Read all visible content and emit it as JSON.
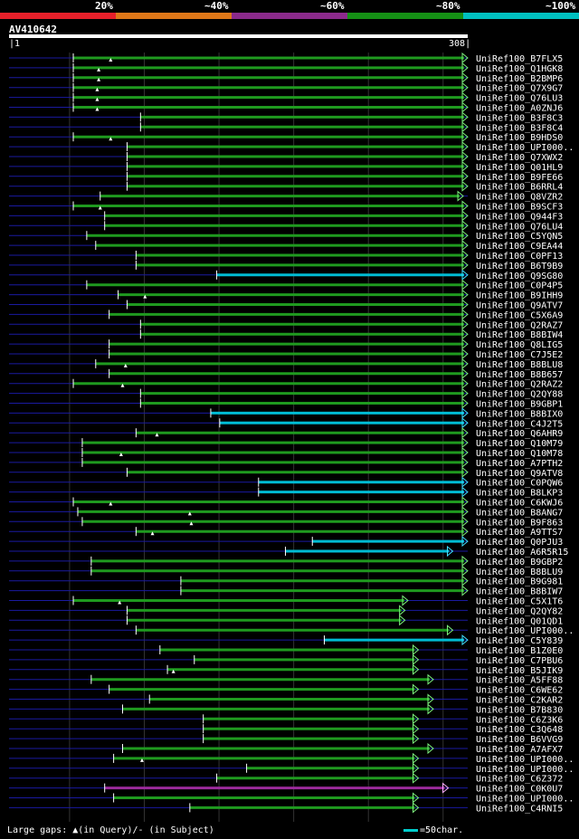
{
  "chart_data": {
    "type": "alignment",
    "query_id": "AV410642",
    "query_range": [
      1,
      308
    ],
    "legend": {
      "labels": [
        "20%",
        "~40%",
        "~60%",
        "~80%",
        "~100%"
      ],
      "colors": [
        "#e8202a",
        "#e07818",
        "#8b2a8b",
        "#159015",
        "#00c0c0"
      ]
    },
    "colors": {
      "green": "#1f9a1f",
      "cyan": "#00bcd4",
      "magenta": "#9b2a9b",
      "arrow_green": "#7cf07c",
      "arrow_cyan": "#40e0ff",
      "dash": "#1a1aa0",
      "grid": "#333333"
    },
    "hits": [
      {
        "id": "UniRef100_B7FLX5",
        "start": 44,
        "end": 308,
        "color": "green",
        "ins": [
          69
        ]
      },
      {
        "id": "UniRef100_Q1HGK8",
        "start": 44,
        "end": 308,
        "color": "green",
        "ins": [
          61
        ]
      },
      {
        "id": "UniRef100_B2BMP6",
        "start": 44,
        "end": 308,
        "color": "green",
        "ins": [
          61
        ]
      },
      {
        "id": "UniRef100_Q7X9G7",
        "start": 44,
        "end": 308,
        "color": "green",
        "ins": [
          60
        ]
      },
      {
        "id": "UniRef100_Q76LU3",
        "start": 44,
        "end": 308,
        "color": "green",
        "ins": [
          60
        ]
      },
      {
        "id": "UniRef100_A0ZNJ6",
        "start": 44,
        "end": 308,
        "color": "green",
        "ins": [
          60
        ]
      },
      {
        "id": "UniRef100_B3F8C3",
        "start": 89,
        "end": 308,
        "color": "green",
        "ins": []
      },
      {
        "id": "UniRef100_B3F8C4",
        "start": 89,
        "end": 308,
        "color": "green",
        "ins": []
      },
      {
        "id": "UniRef100_B9HDS0",
        "start": 44,
        "end": 308,
        "color": "green",
        "ins": [
          69
        ]
      },
      {
        "id": "UniRef100_UPI000..",
        "start": 80,
        "end": 308,
        "color": "green",
        "ins": []
      },
      {
        "id": "UniRef100_Q7XWX2",
        "start": 80,
        "end": 308,
        "color": "green",
        "ins": []
      },
      {
        "id": "UniRef100_Q01HL9",
        "start": 80,
        "end": 308,
        "color": "green",
        "ins": []
      },
      {
        "id": "UniRef100_B9FE66",
        "start": 80,
        "end": 308,
        "color": "green",
        "ins": []
      },
      {
        "id": "UniRef100_B6RRL4",
        "start": 80,
        "end": 308,
        "color": "green",
        "ins": []
      },
      {
        "id": "UniRef100_Q8VZR2",
        "start": 62,
        "end": 305,
        "color": "green",
        "ins": []
      },
      {
        "id": "UniRef100_B9SCF3",
        "start": 44,
        "end": 308,
        "color": "green",
        "ins": [
          62
        ]
      },
      {
        "id": "UniRef100_Q944F3",
        "start": 65,
        "end": 308,
        "color": "green",
        "ins": []
      },
      {
        "id": "UniRef100_Q76LU4",
        "start": 65,
        "end": 308,
        "color": "green",
        "ins": []
      },
      {
        "id": "UniRef100_C5YQN5",
        "start": 53,
        "end": 308,
        "color": "green",
        "ins": []
      },
      {
        "id": "UniRef100_C9EA44",
        "start": 59,
        "end": 308,
        "color": "green",
        "ins": []
      },
      {
        "id": "UniRef100_C0PF13",
        "start": 86,
        "end": 308,
        "color": "green",
        "ins": []
      },
      {
        "id": "UniRef100_B6T9B9",
        "start": 86,
        "end": 308,
        "color": "green",
        "ins": []
      },
      {
        "id": "UniRef100_Q9SG80",
        "start": 140,
        "end": 308,
        "color": "cyan",
        "ins": []
      },
      {
        "id": "UniRef100_C0P4P5",
        "start": 53,
        "end": 308,
        "color": "green",
        "ins": []
      },
      {
        "id": "UniRef100_B9IHH9",
        "start": 74,
        "end": 308,
        "color": "green",
        "ins": [
          92
        ]
      },
      {
        "id": "UniRef100_Q9ATV7",
        "start": 80,
        "end": 308,
        "color": "green",
        "ins": []
      },
      {
        "id": "UniRef100_C5X6A9",
        "start": 68,
        "end": 308,
        "color": "green",
        "ins": []
      },
      {
        "id": "UniRef100_Q2RAZ7",
        "start": 89,
        "end": 308,
        "color": "green",
        "ins": []
      },
      {
        "id": "UniRef100_B8BIW4",
        "start": 89,
        "end": 308,
        "color": "green",
        "ins": []
      },
      {
        "id": "UniRef100_Q8LIG5",
        "start": 68,
        "end": 308,
        "color": "green",
        "ins": []
      },
      {
        "id": "UniRef100_C7J5E2",
        "start": 68,
        "end": 308,
        "color": "green",
        "ins": []
      },
      {
        "id": "UniRef100_B8BLU8",
        "start": 59,
        "end": 308,
        "color": "green",
        "ins": [
          79
        ]
      },
      {
        "id": "UniRef100_B8B657",
        "start": 68,
        "end": 308,
        "color": "green",
        "ins": []
      },
      {
        "id": "UniRef100_Q2RAZ2",
        "start": 44,
        "end": 308,
        "color": "green",
        "ins": [
          77
        ]
      },
      {
        "id": "UniRef100_Q2QY88",
        "start": 89,
        "end": 308,
        "color": "green",
        "ins": []
      },
      {
        "id": "UniRef100_B9GBP1",
        "start": 89,
        "end": 308,
        "color": "green",
        "ins": []
      },
      {
        "id": "UniRef100_B8BIX0",
        "start": 136,
        "end": 308,
        "color": "cyan",
        "ins": []
      },
      {
        "id": "UniRef100_C4J2T5",
        "start": 142,
        "end": 308,
        "color": "cyan",
        "ins": []
      },
      {
        "id": "UniRef100_Q6AHR9",
        "start": 86,
        "end": 308,
        "color": "green",
        "ins": [
          100
        ]
      },
      {
        "id": "UniRef100_Q10M79",
        "start": 50,
        "end": 308,
        "color": "green",
        "ins": []
      },
      {
        "id": "UniRef100_Q10M78",
        "start": 50,
        "end": 308,
        "color": "green",
        "ins": [
          76
        ]
      },
      {
        "id": "UniRef100_A7PTH2",
        "start": 50,
        "end": 308,
        "color": "green",
        "ins": []
      },
      {
        "id": "UniRef100_Q9ATV8",
        "start": 80,
        "end": 308,
        "color": "green",
        "ins": []
      },
      {
        "id": "UniRef100_C0PQW6",
        "start": 168,
        "end": 308,
        "color": "cyan",
        "ins": []
      },
      {
        "id": "UniRef100_B8LKP3",
        "start": 168,
        "end": 308,
        "color": "cyan",
        "ins": []
      },
      {
        "id": "UniRef100_C6KWJ6",
        "start": 44,
        "end": 308,
        "color": "green",
        "ins": [
          69
        ]
      },
      {
        "id": "UniRef100_B8ANG7",
        "start": 47,
        "end": 308,
        "color": "green",
        "ins": [
          122
        ]
      },
      {
        "id": "UniRef100_B9F863",
        "start": 50,
        "end": 308,
        "color": "green",
        "ins": [
          123
        ]
      },
      {
        "id": "UniRef100_A9TTS7",
        "start": 86,
        "end": 308,
        "color": "green",
        "ins": [
          97
        ]
      },
      {
        "id": "UniRef100_Q0PJU3",
        "start": 204,
        "end": 308,
        "color": "cyan",
        "ins": []
      },
      {
        "id": "UniRef100_A6R5R15",
        "start": 186,
        "end": 298,
        "color": "cyan",
        "ins": []
      },
      {
        "id": "UniRef100_B9GBP2",
        "start": 56,
        "end": 308,
        "color": "green",
        "ins": []
      },
      {
        "id": "UniRef100_B8BLU9",
        "start": 56,
        "end": 308,
        "color": "green",
        "ins": []
      },
      {
        "id": "UniRef100_B9G981",
        "start": 116,
        "end": 308,
        "color": "green",
        "ins": []
      },
      {
        "id": "UniRef100_B8BIW7",
        "start": 116,
        "end": 308,
        "color": "green",
        "ins": []
      },
      {
        "id": "UniRef100_C5X1T6",
        "start": 44,
        "end": 268,
        "color": "green",
        "ins": [
          75
        ]
      },
      {
        "id": "UniRef100_Q2QY82",
        "start": 80,
        "end": 266,
        "color": "green",
        "ins": []
      },
      {
        "id": "UniRef100_Q01QD1",
        "start": 80,
        "end": 266,
        "color": "green",
        "ins": []
      },
      {
        "id": "UniRef100_UPI000..",
        "start": 86,
        "end": 298,
        "color": "green",
        "ins": []
      },
      {
        "id": "UniRef100_C5Y839",
        "start": 212,
        "end": 308,
        "color": "cyan",
        "ins": []
      },
      {
        "id": "UniRef100_B1Z0E0",
        "start": 102,
        "end": 275,
        "color": "green",
        "ins": []
      },
      {
        "id": "UniRef100_C7PBU6",
        "start": 125,
        "end": 275,
        "color": "green",
        "ins": []
      },
      {
        "id": "UniRef100_B5JIK9",
        "start": 107,
        "end": 275,
        "color": "green",
        "ins": [
          111
        ]
      },
      {
        "id": "UniRef100_A5FF88",
        "start": 56,
        "end": 285,
        "color": "green",
        "ins": []
      },
      {
        "id": "UniRef100_C6WE62",
        "start": 68,
        "end": 275,
        "color": "green",
        "ins": []
      },
      {
        "id": "UniRef100_C2KAR2",
        "start": 95,
        "end": 285,
        "color": "green",
        "ins": []
      },
      {
        "id": "UniRef100_B7B830",
        "start": 77,
        "end": 285,
        "color": "green",
        "ins": []
      },
      {
        "id": "UniRef100_C6Z3K6",
        "start": 131,
        "end": 275,
        "color": "green",
        "ins": []
      },
      {
        "id": "UniRef100_C3Q648",
        "start": 131,
        "end": 275,
        "color": "green",
        "ins": []
      },
      {
        "id": "UniRef100_B6VVG9",
        "start": 131,
        "end": 275,
        "color": "green",
        "ins": []
      },
      {
        "id": "UniRef100_A7AFX7",
        "start": 77,
        "end": 285,
        "color": "green",
        "ins": []
      },
      {
        "id": "UniRef100_UPI000..",
        "start": 71,
        "end": 275,
        "color": "green",
        "ins": [
          90
        ]
      },
      {
        "id": "UniRef100_UPI000..",
        "start": 160,
        "end": 275,
        "color": "green",
        "ins": []
      },
      {
        "id": "UniRef100_C6Z372",
        "start": 140,
        "end": 275,
        "color": "green",
        "ins": []
      },
      {
        "id": "UniRef100_C0K0U7",
        "start": 65,
        "end": 295,
        "color": "magenta",
        "ins": []
      },
      {
        "id": "UniRef100_UPI000..",
        "start": 71,
        "end": 275,
        "color": "green",
        "ins": []
      },
      {
        "id": "UniRef100_C4RNI5",
        "start": 122,
        "end": 275,
        "color": "green",
        "ins": []
      }
    ]
  },
  "footer": {
    "gaps_text": "Large gaps: ▲(in Query)/- (in Subject)",
    "scale_text": "=50char."
  }
}
